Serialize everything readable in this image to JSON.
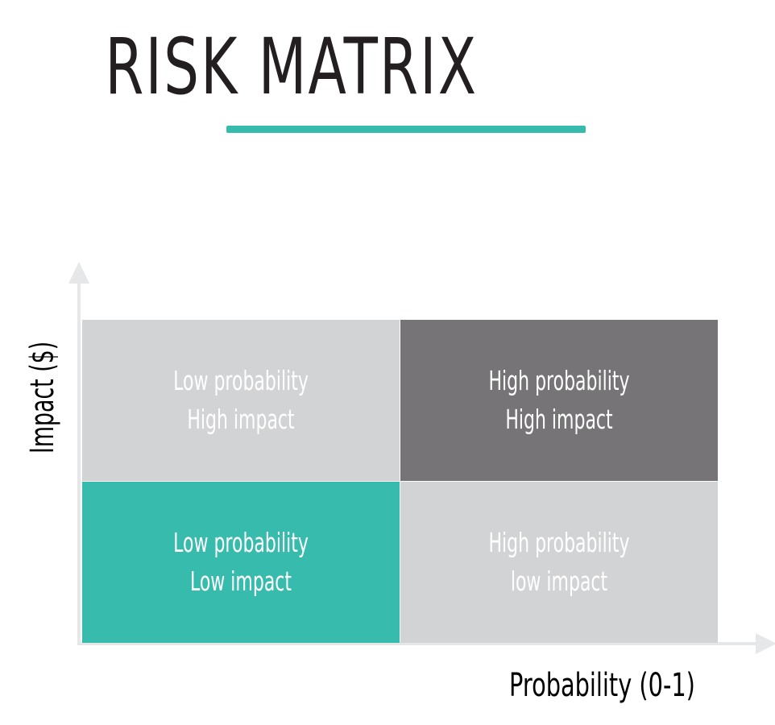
{
  "title": "RISK MATRIX",
  "axes": {
    "y_label": "Impact ($)",
    "x_label": "Probability (0-1)"
  },
  "quadrants": {
    "top_left": {
      "line1": "Low probability",
      "line2": "High impact",
      "color": "#d2d3d5"
    },
    "top_right": {
      "line1": "High probability",
      "line2": "High impact",
      "color": "#767476"
    },
    "bottom_left": {
      "line1": "Low probability",
      "line2": "Low impact",
      "color": "#36bbad"
    },
    "bottom_right": {
      "line1": "High probability",
      "line2": "low impact",
      "color": "#d2d3d5"
    }
  },
  "colors": {
    "accent": "#36bbad",
    "axis": "#e6e7e9",
    "title_text": "#231f20",
    "cell_text": "#ffffff"
  }
}
